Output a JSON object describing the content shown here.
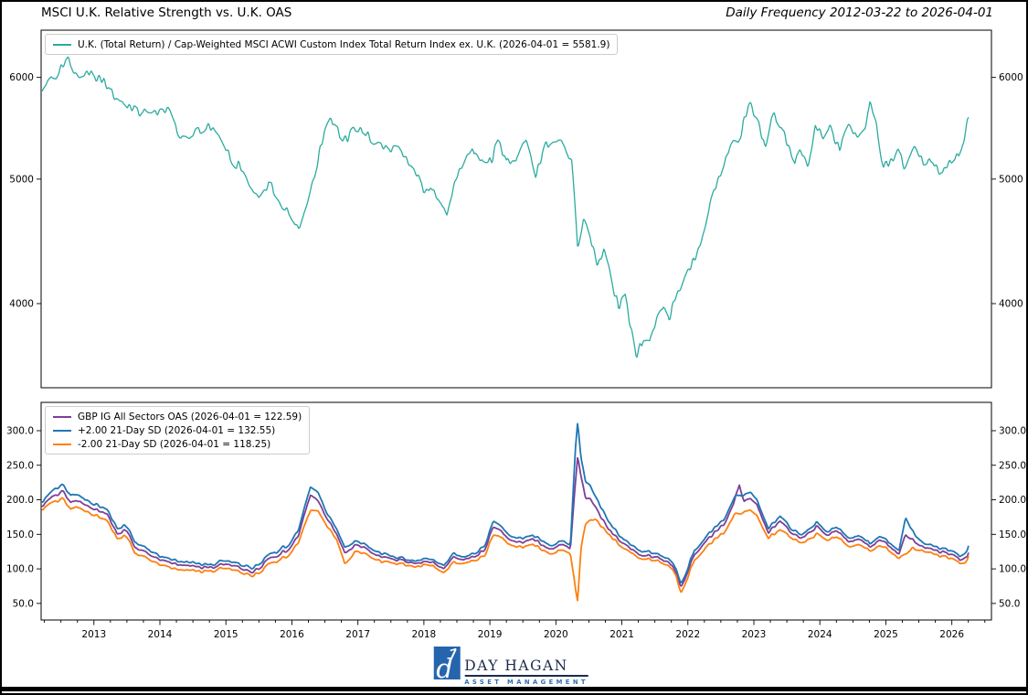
{
  "header": {
    "title": "MSCI U.K. Relative Strength vs. U.K. OAS",
    "subtitle": "Daily Frequency 2012-03-22 to 2026-04-01"
  },
  "footer": {
    "logo_mark": "d",
    "logo_name": "DAY HAGAN",
    "logo_tagline": "ASSET MANAGEMENT",
    "logo_square_color": "#2565ae",
    "logo_name_color": "#1c2b4a",
    "logo_tagline_color": "#2e6db4"
  },
  "chart_data": [
    {
      "type": "line",
      "panel": "top",
      "y_scale": "log",
      "legend_position": "upper left",
      "grid": false,
      "xlim": [
        2012.2,
        2026.6
      ],
      "ylim": [
        3440,
        6530
      ],
      "y_ticks": [
        4000,
        5000,
        6000
      ],
      "y_tick_labels": [
        "4000",
        "5000",
        "6000"
      ],
      "x": [
        2012.22,
        2012.3,
        2012.4,
        2012.5,
        2012.6,
        2012.7,
        2012.8,
        2012.9,
        2013.0,
        2013.1,
        2013.25,
        2013.4,
        2013.55,
        2013.7,
        2013.85,
        2014.0,
        2014.12,
        2014.3,
        2014.45,
        2014.6,
        2014.75,
        2014.9,
        2015.05,
        2015.2,
        2015.35,
        2015.5,
        2015.65,
        2015.8,
        2015.95,
        2016.08,
        2016.2,
        2016.35,
        2016.5,
        2016.6,
        2016.72,
        2016.85,
        2016.95,
        2017.1,
        2017.25,
        2017.4,
        2017.55,
        2017.7,
        2017.85,
        2018.0,
        2018.1,
        2018.22,
        2018.35,
        2018.5,
        2018.65,
        2018.78,
        2018.9,
        2019.02,
        2019.12,
        2019.25,
        2019.4,
        2019.55,
        2019.7,
        2019.85,
        2020.0,
        2020.13,
        2020.24,
        2020.33,
        2020.42,
        2020.52,
        2020.63,
        2020.73,
        2020.85,
        2020.95,
        2021.05,
        2021.15,
        2021.22,
        2021.32,
        2021.42,
        2021.52,
        2021.63,
        2021.72,
        2021.85,
        2021.97,
        2022.1,
        2022.25,
        2022.4,
        2022.52,
        2022.63,
        2022.74,
        2022.85,
        2022.95,
        2023.05,
        2023.17,
        2023.27,
        2023.4,
        2023.52,
        2023.62,
        2023.72,
        2023.82,
        2023.93,
        2024.05,
        2024.16,
        2024.3,
        2024.44,
        2024.56,
        2024.66,
        2024.76,
        2024.86,
        2024.96,
        2025.08,
        2025.18,
        2025.3,
        2025.43,
        2025.56,
        2025.7,
        2025.86,
        2026.0,
        2026.1,
        2026.18,
        2026.25
      ],
      "series": [
        {
          "id": "uk-relative-strength",
          "name": "U.K. (Total Return) / Cap-Weighted MSCI ACWI Custom Index Total Return Index ex. U.K. (2026-04-01 = 5581.9)",
          "color": "#2bab9f",
          "last_date": "2026-04-01",
          "last_value": 5581.9,
          "y": [
            5790,
            5920,
            6040,
            6120,
            6180,
            6100,
            6030,
            6080,
            5950,
            5990,
            5820,
            5750,
            5700,
            5650,
            5560,
            5610,
            5680,
            5430,
            5350,
            5450,
            5490,
            5380,
            5230,
            5120,
            4940,
            4880,
            4960,
            4810,
            4700,
            4580,
            4750,
            5050,
            5450,
            5570,
            5410,
            5360,
            5490,
            5440,
            5360,
            5320,
            5290,
            5230,
            5060,
            4900,
            4950,
            4840,
            4690,
            5010,
            5150,
            5250,
            5170,
            5150,
            5370,
            5130,
            5180,
            5370,
            5070,
            5320,
            5390,
            5310,
            5160,
            4420,
            4660,
            4550,
            4290,
            4430,
            4170,
            3980,
            4060,
            3800,
            3620,
            3770,
            3700,
            3860,
            3970,
            3900,
            4090,
            4200,
            4350,
            4600,
            4890,
            5090,
            5240,
            5340,
            5540,
            5700,
            5550,
            5290,
            5610,
            5470,
            5340,
            5150,
            5260,
            5140,
            5540,
            5390,
            5470,
            5270,
            5470,
            5390,
            5450,
            5730,
            5510,
            5070,
            5160,
            5270,
            5090,
            5300,
            5170,
            5210,
            5050,
            5150,
            5210,
            5360,
            5582
          ]
        }
      ]
    },
    {
      "type": "line",
      "panel": "bottom",
      "y_scale": "linear",
      "legend_position": "upper left",
      "grid": false,
      "xlim": [
        2012.2,
        2026.6
      ],
      "ylim": [
        26,
        341
      ],
      "y_ticks": [
        50,
        100,
        150,
        200,
        250,
        300
      ],
      "y_tick_labels": [
        "50.0",
        "100.0",
        "150.0",
        "200.0",
        "250.0",
        "300.0"
      ],
      "x_ticks": [
        2013,
        2014,
        2015,
        2016,
        2017,
        2018,
        2019,
        2020,
        2021,
        2022,
        2023,
        2024,
        2025,
        2026
      ],
      "x_tick_labels": [
        "2013",
        "2014",
        "2015",
        "2016",
        "2017",
        "2018",
        "2019",
        "2020",
        "2021",
        "2022",
        "2023",
        "2024",
        "2025",
        "2026"
      ],
      "x": [
        2012.22,
        2012.4,
        2012.52,
        2012.65,
        2012.8,
        2013.0,
        2013.2,
        2013.35,
        2013.5,
        2013.62,
        2013.8,
        2014.05,
        2014.3,
        2014.55,
        2014.8,
        2014.95,
        2015.2,
        2015.38,
        2015.55,
        2015.72,
        2015.95,
        2016.1,
        2016.28,
        2016.4,
        2016.52,
        2016.68,
        2016.8,
        2016.95,
        2017.1,
        2017.3,
        2017.5,
        2017.75,
        2018.0,
        2018.15,
        2018.3,
        2018.45,
        2018.62,
        2018.78,
        2018.92,
        2019.05,
        2019.2,
        2019.35,
        2019.5,
        2019.65,
        2019.8,
        2019.95,
        2020.1,
        2020.22,
        2020.3,
        2020.33,
        2020.38,
        2020.45,
        2020.52,
        2020.6,
        2020.7,
        2020.8,
        2020.95,
        2021.1,
        2021.25,
        2021.4,
        2021.55,
        2021.7,
        2021.82,
        2021.9,
        2021.97,
        2022.1,
        2022.25,
        2022.4,
        2022.55,
        2022.7,
        2022.78,
        2022.85,
        2022.95,
        2023.05,
        2023.22,
        2023.4,
        2023.55,
        2023.72,
        2023.95,
        2024.1,
        2024.25,
        2024.42,
        2024.58,
        2024.75,
        2024.9,
        2025.05,
        2025.2,
        2025.3,
        2025.4,
        2025.55,
        2025.7,
        2025.85,
        2026.0,
        2026.12,
        2026.2,
        2026.25
      ],
      "series": [
        {
          "id": "gbp-ig-oas",
          "name": "GBP IG All Sectors OAS (2026-04-01 = 122.59)",
          "color": "#7d3f98",
          "last_date": "2026-04-01",
          "last_value": 122.59,
          "y": [
            193,
            205,
            213,
            196,
            197,
            186,
            179,
            152,
            157,
            130,
            123,
            111,
            106,
            102,
            101,
            106,
            103,
            95,
            106,
            118,
            126,
            148,
            207,
            198,
            176,
            150,
            124,
            134,
            131,
            118,
            113,
            111,
            110,
            108,
            99,
            116,
            114,
            118,
            128,
            162,
            151,
            141,
            138,
            144,
            133,
            131,
            136,
            129,
            230,
            264,
            235,
            205,
            203,
            190,
            172,
            155,
            143,
            131,
            122,
            119,
            117,
            108,
            95,
            72,
            90,
            121,
            136,
            151,
            166,
            196,
            222,
            196,
            203,
            192,
            153,
            171,
            153,
            146,
            161,
            149,
            156,
            139,
            144,
            133,
            140,
            134,
            121,
            150,
            142,
            131,
            127,
            123,
            121,
            113,
            118,
            122.59
          ]
        },
        {
          "id": "plus-2sd",
          "name": "+2.00 21-Day SD (2026-04-01 = 132.55)",
          "color": "#1f77b4",
          "last_date": "2026-04-01",
          "last_value": 132.55,
          "y": [
            199,
            214,
            222,
            206,
            205,
            193,
            186,
            160,
            163,
            138,
            129,
            116,
            111,
            107,
            105,
            111,
            108,
            101,
            112,
            124,
            133,
            156,
            219,
            210,
            184,
            157,
            132,
            140,
            136,
            123,
            117,
            114,
            114,
            112,
            104,
            121,
            118,
            122,
            134,
            170,
            158,
            147,
            144,
            149,
            139,
            136,
            141,
            134,
            280,
            314,
            262,
            228,
            222,
            205,
            186,
            166,
            150,
            137,
            128,
            125,
            122,
            113,
            100,
            77,
            95,
            127,
            142,
            158,
            173,
            203,
            207,
            205,
            212,
            199,
            159,
            178,
            159,
            151,
            167,
            154,
            161,
            144,
            149,
            138,
            145,
            139,
            126,
            175,
            155,
            137,
            132,
            128,
            126,
            118,
            124,
            132.55
          ]
        },
        {
          "id": "minus-2sd",
          "name": "-2.00 21-Day SD (2026-04-01 = 118.25)",
          "color": "#ff7f0e",
          "last_date": "2026-04-01",
          "last_value": 118.25,
          "y": [
            188,
            196,
            203,
            186,
            188,
            177,
            170,
            145,
            148,
            122,
            115,
            104,
            99,
            96,
            96,
            100,
            97,
            90,
            99,
            110,
            118,
            138,
            185,
            183,
            165,
            142,
            108,
            124,
            123,
            111,
            107,
            106,
            105,
            103,
            93,
            108,
            109,
            112,
            120,
            150,
            143,
            134,
            131,
            136,
            126,
            124,
            128,
            121,
            70,
            54,
            130,
            168,
            172,
            172,
            160,
            148,
            136,
            125,
            117,
            114,
            112,
            103,
            90,
            63,
            82,
            113,
            127,
            141,
            154,
            178,
            180,
            181,
            186,
            176,
            145,
            158,
            146,
            139,
            150,
            142,
            147,
            132,
            136,
            127,
            132,
            127,
            115,
            122,
            130,
            125,
            121,
            117,
            115,
            108,
            111,
            118.25
          ]
        }
      ]
    }
  ]
}
